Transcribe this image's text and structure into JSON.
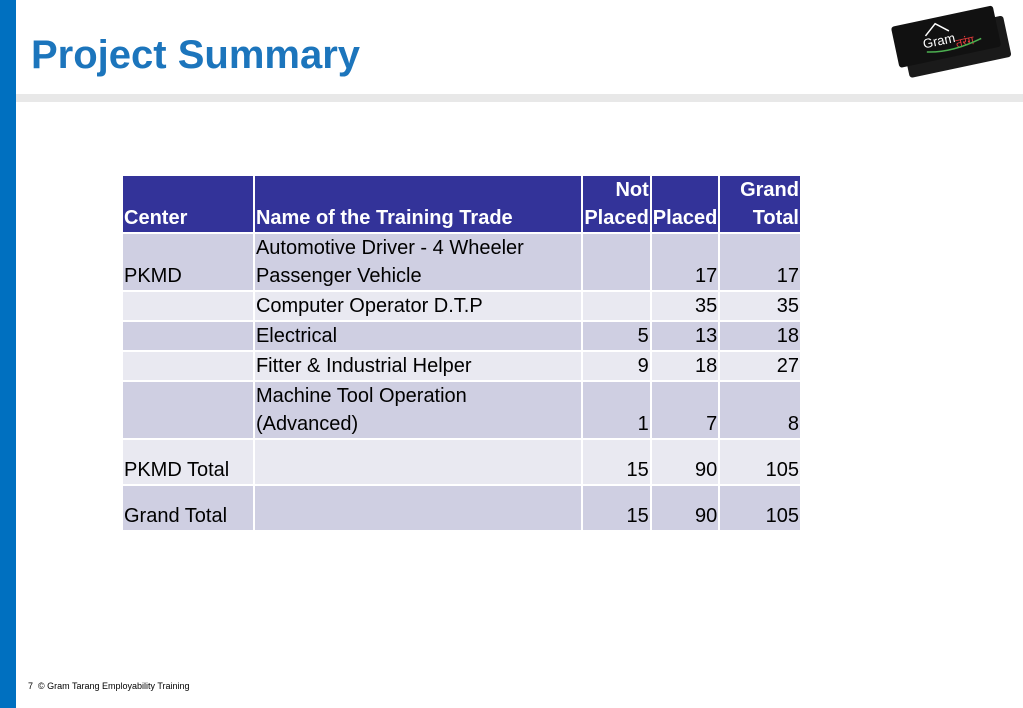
{
  "slide": {
    "title": "Project Summary",
    "page_number": "7",
    "footer_text": "© Gram Tarang Employability Training"
  },
  "logo": {
    "text_primary": "Gram",
    "text_secondary": "तरंग"
  },
  "table": {
    "headers": {
      "center": "Center",
      "trade": "Name of the Training Trade",
      "not_placed_line1": "Not",
      "not_placed_line2": "Placed",
      "placed": "Placed",
      "grand_total_line1": "Grand",
      "grand_total_line2": "Total"
    },
    "rows": [
      {
        "center": "PKMD",
        "trade_line1": "Automotive Driver - 4 Wheeler",
        "trade_line2": "Passenger Vehicle",
        "not_placed": "",
        "placed": "17",
        "grand_total": "17"
      },
      {
        "center": "",
        "trade_line1": "Computer Operator D.T.P",
        "trade_line2": "",
        "not_placed": "",
        "placed": "35",
        "grand_total": "35"
      },
      {
        "center": "",
        "trade_line1": "Electrical",
        "trade_line2": "",
        "not_placed": "5",
        "placed": "13",
        "grand_total": "18"
      },
      {
        "center": "",
        "trade_line1": "Fitter & Industrial Helper",
        "trade_line2": "",
        "not_placed": "9",
        "placed": "18",
        "grand_total": "27"
      },
      {
        "center": "",
        "trade_line1": "Machine Tool Operation",
        "trade_line2": "(Advanced)",
        "not_placed": "1",
        "placed": "7",
        "grand_total": "8"
      }
    ],
    "center_total": {
      "label": "PKMD Total",
      "trade": "",
      "not_placed": "15",
      "placed": "90",
      "grand_total": "105"
    },
    "grand_total": {
      "label": "Grand Total",
      "trade": "",
      "not_placed": "15",
      "placed": "90",
      "grand_total": "105"
    }
  },
  "colors": {
    "accent_blue": "#0070c0",
    "title_blue": "#1c75bc",
    "table_header": "#333399",
    "row_dark": "#cfcfe2",
    "row_light": "#e9e9f1"
  }
}
